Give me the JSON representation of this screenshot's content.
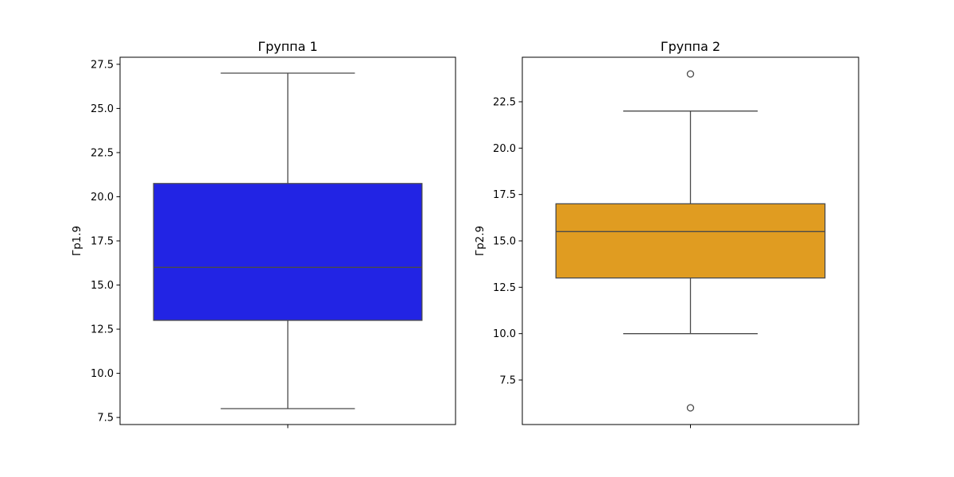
{
  "chart_data": [
    {
      "type": "box",
      "title": "Группа 1",
      "xlabel": "",
      "ylabel": "Гр1.9",
      "ylim": [
        7.1,
        27.9
      ],
      "yticks": [
        7.5,
        10.0,
        12.5,
        15.0,
        17.5,
        20.0,
        22.5,
        25.0,
        27.5
      ],
      "ytick_labels": [
        "7.5",
        "10.0",
        "12.5",
        "15.0",
        "17.5",
        "20.0",
        "22.5",
        "25.0",
        "27.5"
      ],
      "box": {
        "whisker_low": 8.0,
        "q1": 13.0,
        "median": 16.0,
        "q3": 20.75,
        "whisker_high": 27.0,
        "outliers": []
      },
      "color": "#2224e4",
      "line_color": "#4a4a4a",
      "grid": false
    },
    {
      "type": "box",
      "title": "Группа 2",
      "xlabel": "",
      "ylabel": "Гр2.9",
      "ylim": [
        5.1,
        24.9
      ],
      "yticks": [
        7.5,
        10.0,
        12.5,
        15.0,
        17.5,
        20.0,
        22.5
      ],
      "ytick_labels": [
        "7.5",
        "10.0",
        "12.5",
        "15.0",
        "17.5",
        "20.0",
        "22.5"
      ],
      "box": {
        "whisker_low": 10.0,
        "q1": 13.0,
        "median": 15.5,
        "q3": 17.0,
        "whisker_high": 22.0,
        "outliers": [
          6.0,
          24.0
        ]
      },
      "color": "#e09c21",
      "line_color": "#4a4a4a",
      "grid": false
    }
  ]
}
